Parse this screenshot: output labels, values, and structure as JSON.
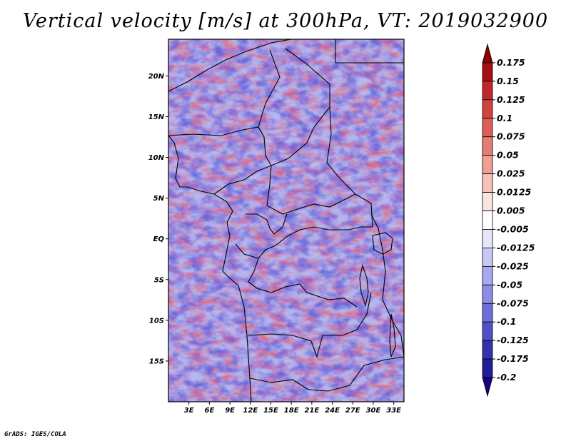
{
  "title": "Vertical velocity [m/s] at 300hPa, VT: 2019032900",
  "credit": "GrADS: IGES/COLA",
  "map": {
    "variable": "Vertical velocity",
    "units": "m/s",
    "level": "300hPa",
    "valid_time": "2019032900",
    "region": "Central Africa",
    "lat_labels": [
      "20N",
      "15N",
      "10N",
      "5N",
      "EQ",
      "5S",
      "10S",
      "15S"
    ],
    "lat_values": [
      20,
      15,
      10,
      5,
      0,
      -5,
      -10,
      -15
    ],
    "lon_labels": [
      "3E",
      "6E",
      "9E",
      "12E",
      "15E",
      "18E",
      "21E",
      "24E",
      "27E",
      "30E",
      "33E"
    ],
    "lon_values": [
      3,
      6,
      9,
      12,
      15,
      18,
      21,
      24,
      27,
      30,
      33
    ],
    "lon_range": [
      0,
      34.5
    ],
    "lat_range": [
      -20,
      24.5
    ]
  },
  "colorbar": {
    "levels": [
      "0.175",
      "0.15",
      "0.125",
      "0.1",
      "0.075",
      "0.05",
      "0.025",
      "0.0125",
      "0.005",
      "-0.005",
      "-0.0125",
      "-0.025",
      "-0.05",
      "-0.075",
      "-0.1",
      "-0.125",
      "-0.175",
      "-0.2"
    ],
    "colors": [
      "#8b0000",
      "#a50f15",
      "#c0272d",
      "#d0433f",
      "#dc5e55",
      "#e47e72",
      "#ee9f92",
      "#f5c2b8",
      "#fbe4de",
      "#ffffff",
      "#e6e6fa",
      "#c8c8f5",
      "#a8a8ef",
      "#8c8ce6",
      "#6e6edc",
      "#5050c8",
      "#3232aa",
      "#1e1e96",
      "#1a0080"
    ]
  }
}
